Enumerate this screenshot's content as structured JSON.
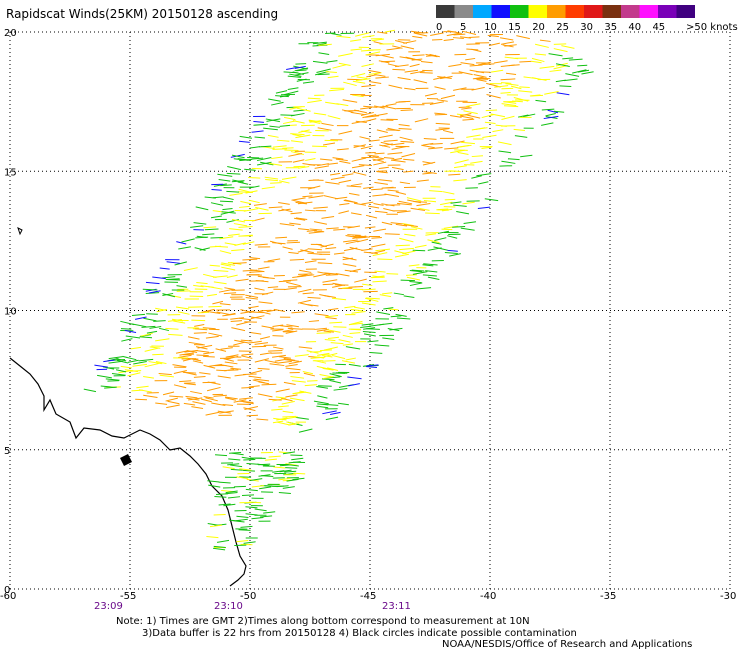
{
  "title": "Rapidscat Winds(25KM) 20150128 ascending",
  "legend": {
    "labels": [
      "0",
      "5",
      "10",
      "15",
      "20",
      "25",
      "30",
      "35",
      "40",
      "45",
      ">50 knots"
    ],
    "colors": [
      "#3a3a3a",
      "#8a8a8a",
      "#00a8ff",
      "#1010ff",
      "#10c010",
      "#ffff00",
      "#ff9c00",
      "#ff3c00",
      "#e01818",
      "#7a3010",
      "#c23a8c",
      "#ff10ff",
      "#7a00b8",
      "#400080"
    ]
  },
  "axes": {
    "x_ticks": [
      "-60",
      "-55",
      "-50",
      "-45",
      "-40",
      "-35",
      "-30"
    ],
    "y_ticks": [
      "0",
      "5",
      "10",
      "15",
      "20"
    ],
    "xlim": [
      -60,
      -30
    ],
    "ylim": [
      0,
      20
    ]
  },
  "times": [
    {
      "label": "23:09",
      "lon": -55
    },
    {
      "label": "23:10",
      "lon": -50
    },
    {
      "label": "23:11",
      "lon": -43
    }
  ],
  "notes": [
    "Note: 1) Times are GMT 2)Times along bottom correspond to measurement at 10N",
    "3)Data buffer is 22 hrs from 20150128 4) Black circles indicate possible contamination",
    "NOAA/NESDIS/Office of Research and Applications"
  ]
}
